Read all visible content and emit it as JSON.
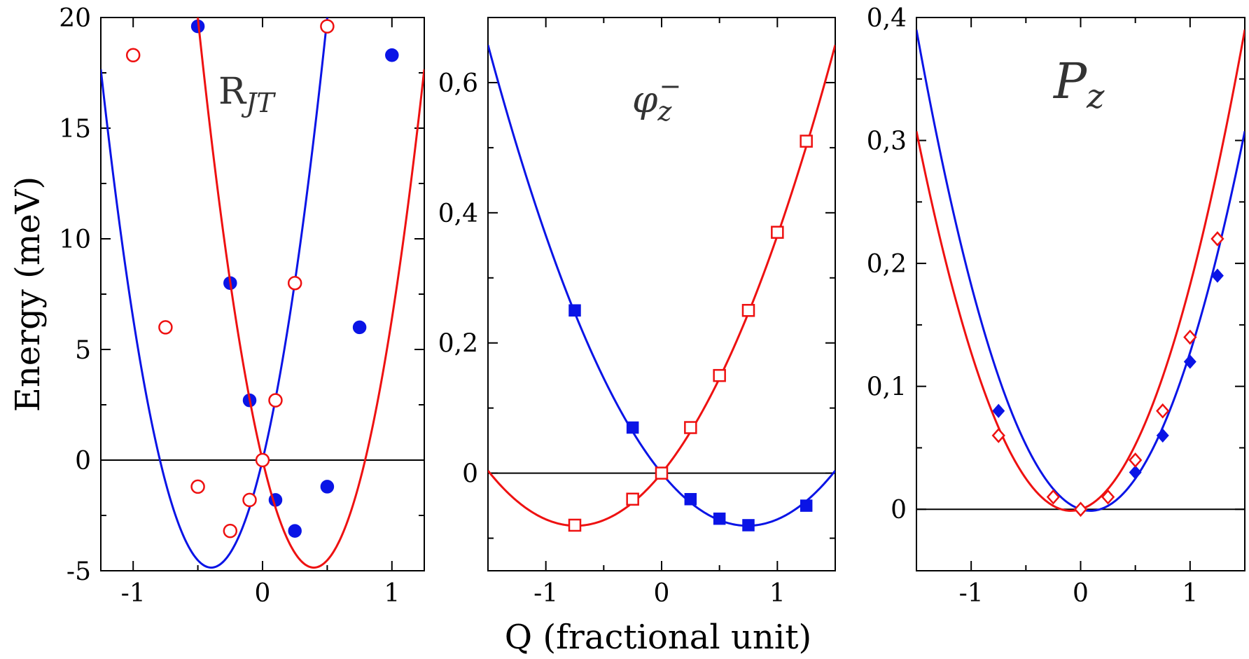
{
  "figure": {
    "ylabel": "Energy (meV)",
    "xlabel": "Q (fractional unit)"
  },
  "colors": {
    "blue": "#0a14e6",
    "red": "#ee1111"
  },
  "chart_data": [
    {
      "type": "scatter",
      "title": "R_JT",
      "title_main": "R",
      "title_sub": "JT",
      "xlim": [
        -1.25,
        1.25
      ],
      "ylim": [
        -5,
        20
      ],
      "xticks": [
        -1,
        0,
        1
      ],
      "xtick_labels": [
        "-1",
        "0",
        "1"
      ],
      "yticks": [
        -5,
        0,
        5,
        10,
        15,
        20
      ],
      "ytick_labels": [
        "-5",
        "0",
        "5",
        "10",
        "15",
        "20"
      ],
      "series": [
        {
          "name": "blue filled circles",
          "color": "blue",
          "marker": "circle",
          "filled": true,
          "x": [
            -0.5,
            -0.25,
            -0.1,
            0,
            0.1,
            0.25,
            0.5,
            0.75,
            1.0
          ],
          "y": [
            19.6,
            8.0,
            2.7,
            0.0,
            -1.8,
            -3.2,
            -1.2,
            6.0,
            18.3
          ],
          "fit": [
            30.9,
            24.5,
            0
          ]
        },
        {
          "name": "red open circles",
          "color": "red",
          "marker": "circle",
          "filled": false,
          "x": [
            -1.0,
            -0.75,
            -0.5,
            -0.25,
            -0.1,
            0,
            0.1,
            0.25,
            0.5
          ],
          "y": [
            18.3,
            6.0,
            -1.2,
            -3.2,
            -1.8,
            0.0,
            2.7,
            8.0,
            19.6
          ],
          "fit": [
            30.9,
            -24.5,
            0
          ]
        }
      ]
    },
    {
      "type": "scatter",
      "title": "phi_z^-",
      "title_main": "φ",
      "title_sub": "z",
      "title_sup": "−",
      "xlim": [
        -1.5,
        1.5
      ],
      "ylim": [
        -0.15,
        0.7
      ],
      "xticks": [
        -1,
        0,
        1
      ],
      "xtick_labels": [
        "-1",
        "0",
        "1"
      ],
      "yticks": [
        0,
        0.2,
        0.4,
        0.6
      ],
      "ytick_labels": [
        "0",
        "0,2",
        "0,4",
        "0,6"
      ],
      "series": [
        {
          "name": "blue filled squares",
          "color": "blue",
          "marker": "square",
          "filled": true,
          "x": [
            -0.75,
            -0.25,
            0,
            0.25,
            0.5,
            0.75,
            1.25
          ],
          "y": [
            0.25,
            0.07,
            0.0,
            -0.04,
            -0.07,
            -0.08,
            -0.05
          ],
          "fit": [
            0.147,
            -0.218,
            0
          ]
        },
        {
          "name": "red open squares",
          "color": "red",
          "marker": "square",
          "filled": false,
          "x": [
            -0.75,
            -0.25,
            0,
            0.25,
            0.5,
            0.75,
            1.0,
            1.25
          ],
          "y": [
            -0.08,
            -0.04,
            0.0,
            0.07,
            0.15,
            0.25,
            0.37,
            0.51
          ],
          "fit": [
            0.147,
            0.218,
            0
          ]
        }
      ]
    },
    {
      "type": "scatter",
      "title": "P_z",
      "title_main": "P",
      "title_sub": "z",
      "xlim": [
        -1.5,
        1.5
      ],
      "ylim": [
        -0.05,
        0.4
      ],
      "xticks": [
        -1,
        0,
        1
      ],
      "xtick_labels": [
        "-1",
        "0",
        "1"
      ],
      "yticks": [
        0,
        0.1,
        0.2,
        0.3,
        0.4
      ],
      "ytick_labels": [
        "0",
        "0,1",
        "0,2",
        "0,3",
        "0,4"
      ],
      "series": [
        {
          "name": "blue filled diamonds",
          "color": "blue",
          "marker": "diamond",
          "filled": true,
          "x": [
            -0.75,
            -0.25,
            0,
            0.25,
            0.5,
            0.75,
            1.0,
            1.25
          ],
          "y": [
            0.08,
            0.01,
            0.0,
            0.01,
            0.03,
            0.06,
            0.12,
            0.19
          ],
          "fit": [
            0.155,
            -0.0275,
            0
          ]
        },
        {
          "name": "red open diamonds",
          "color": "red",
          "marker": "diamond",
          "filled": false,
          "x": [
            -0.75,
            -0.25,
            0,
            0.25,
            0.5,
            0.75,
            1.0,
            1.25
          ],
          "y": [
            0.06,
            0.01,
            0.0,
            0.01,
            0.04,
            0.08,
            0.14,
            0.22
          ],
          "fit": [
            0.155,
            0.0275,
            0
          ]
        }
      ]
    }
  ]
}
